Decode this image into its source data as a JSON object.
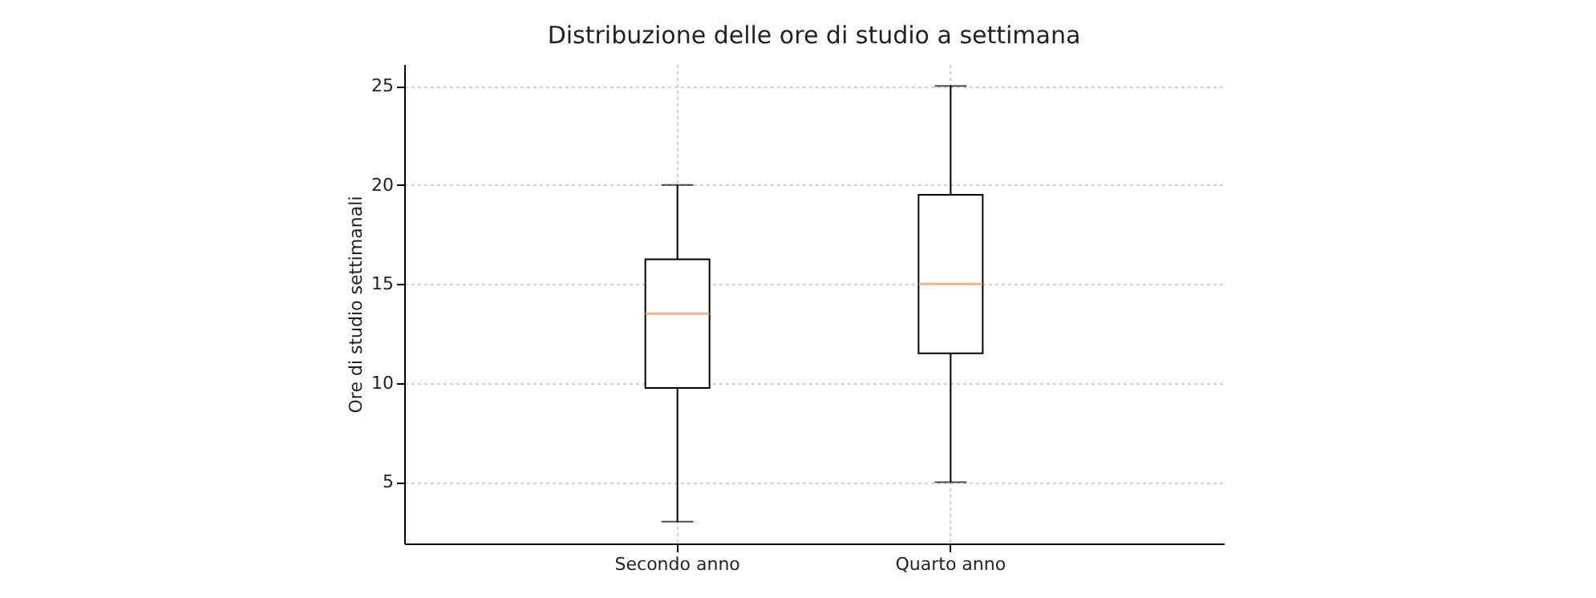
{
  "chart_data": {
    "type": "box",
    "title": "Distribuzione delle ore di studio a settimana",
    "ylabel": "Ore di studio settimanali",
    "categories": [
      "Secondo anno",
      "Quarto anno"
    ],
    "boxes": [
      {
        "low": 3,
        "q1": 9.75,
        "median": 13.5,
        "q3": 16.25,
        "high": 20
      },
      {
        "low": 5,
        "q1": 11.5,
        "median": 15,
        "q3": 19.5,
        "high": 25
      }
    ],
    "ylim": [
      1.9,
      26.1
    ],
    "yticks": [
      5,
      10,
      15,
      20,
      25
    ],
    "grid": true
  }
}
